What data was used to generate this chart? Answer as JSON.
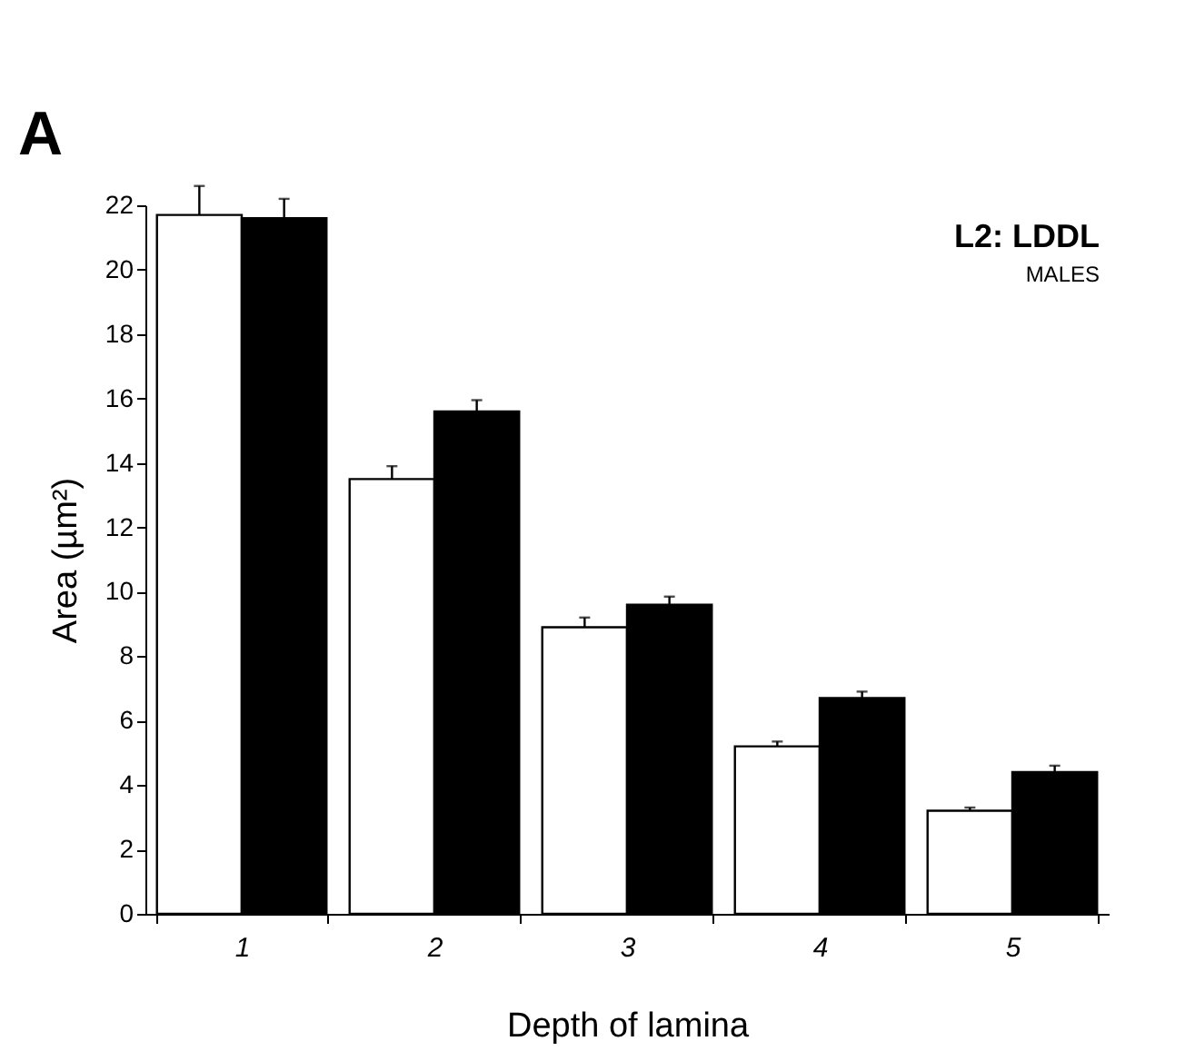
{
  "chart_data": {
    "type": "bar",
    "xlabel": "Depth of lamina",
    "ylabel": "Area (µm²)",
    "annotations": [
      "A",
      "L2: LDDL",
      "MALES"
    ],
    "categories": [
      "1",
      "2",
      "3",
      "4",
      "5"
    ],
    "series": [
      {
        "color": "#ffffff",
        "values": [
          21.7,
          13.5,
          8.9,
          5.2,
          3.2
        ],
        "errors": [
          [
            21.7,
            22.6
          ],
          [
            13.5,
            13.9
          ],
          [
            8.9,
            9.2
          ],
          [
            5.2,
            5.35
          ],
          [
            3.2,
            3.3
          ]
        ]
      },
      {
        "color": "#000000",
        "values": [
          21.6,
          15.6,
          9.6,
          6.7,
          4.4
        ],
        "errors": [
          [
            21.6,
            22.2
          ],
          [
            15.6,
            15.95
          ],
          [
            9.6,
            9.85
          ],
          [
            6.7,
            6.9
          ],
          [
            4.4,
            4.6
          ]
        ]
      }
    ],
    "ylim": [
      0,
      22
    ],
    "yticks": [
      0,
      2,
      4,
      6,
      8,
      10,
      12,
      14,
      16,
      18,
      20,
      22
    ]
  }
}
